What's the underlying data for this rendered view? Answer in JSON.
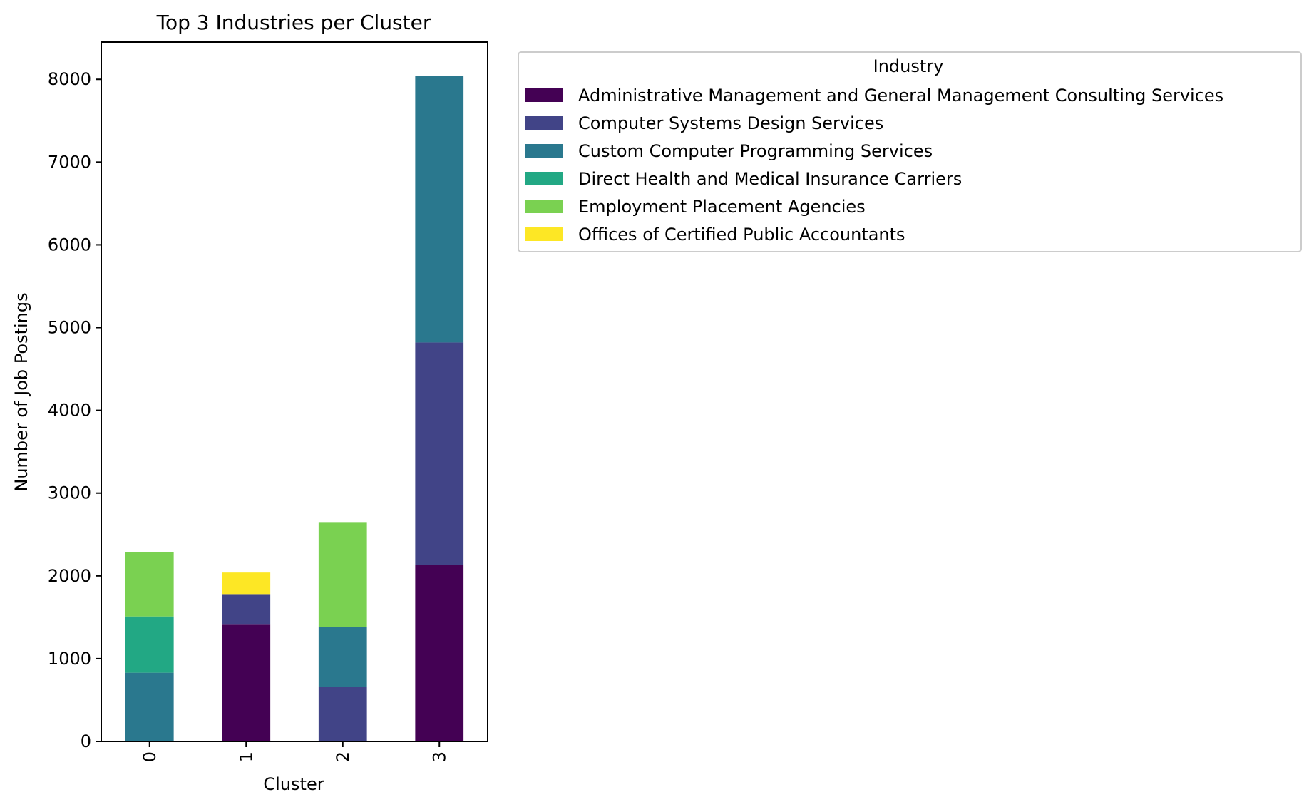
{
  "chart_data": {
    "type": "bar",
    "stacked": true,
    "title": "Top 3 Industries per Cluster",
    "xlabel": "Cluster",
    "ylabel": "Number of Job Postings",
    "categories": [
      "0",
      "1",
      "2",
      "3"
    ],
    "ylim": [
      0,
      8450
    ],
    "yticks": [
      0,
      1000,
      2000,
      3000,
      4000,
      5000,
      6000,
      7000,
      8000
    ],
    "grid": false,
    "legend": {
      "title": "Industry",
      "placement": "outside-right-top"
    },
    "series": [
      {
        "name": "Administrative Management and General Management Consulting Services",
        "color": "#440154",
        "values": [
          0,
          1410,
          0,
          2130
        ]
      },
      {
        "name": "Computer Systems Design Services",
        "color": "#414487",
        "values": [
          0,
          370,
          660,
          2690
        ]
      },
      {
        "name": "Custom Computer Programming Services",
        "color": "#2a788e",
        "values": [
          830,
          0,
          720,
          3220
        ]
      },
      {
        "name": "Direct Health and Medical Insurance Carriers",
        "color": "#22a884",
        "values": [
          680,
          0,
          0,
          0
        ]
      },
      {
        "name": "Employment Placement Agencies",
        "color": "#7ad151",
        "values": [
          780,
          0,
          1270,
          0
        ]
      },
      {
        "name": "Offices of Certified Public Accountants",
        "color": "#fde725",
        "values": [
          0,
          260,
          0,
          0
        ]
      }
    ]
  }
}
